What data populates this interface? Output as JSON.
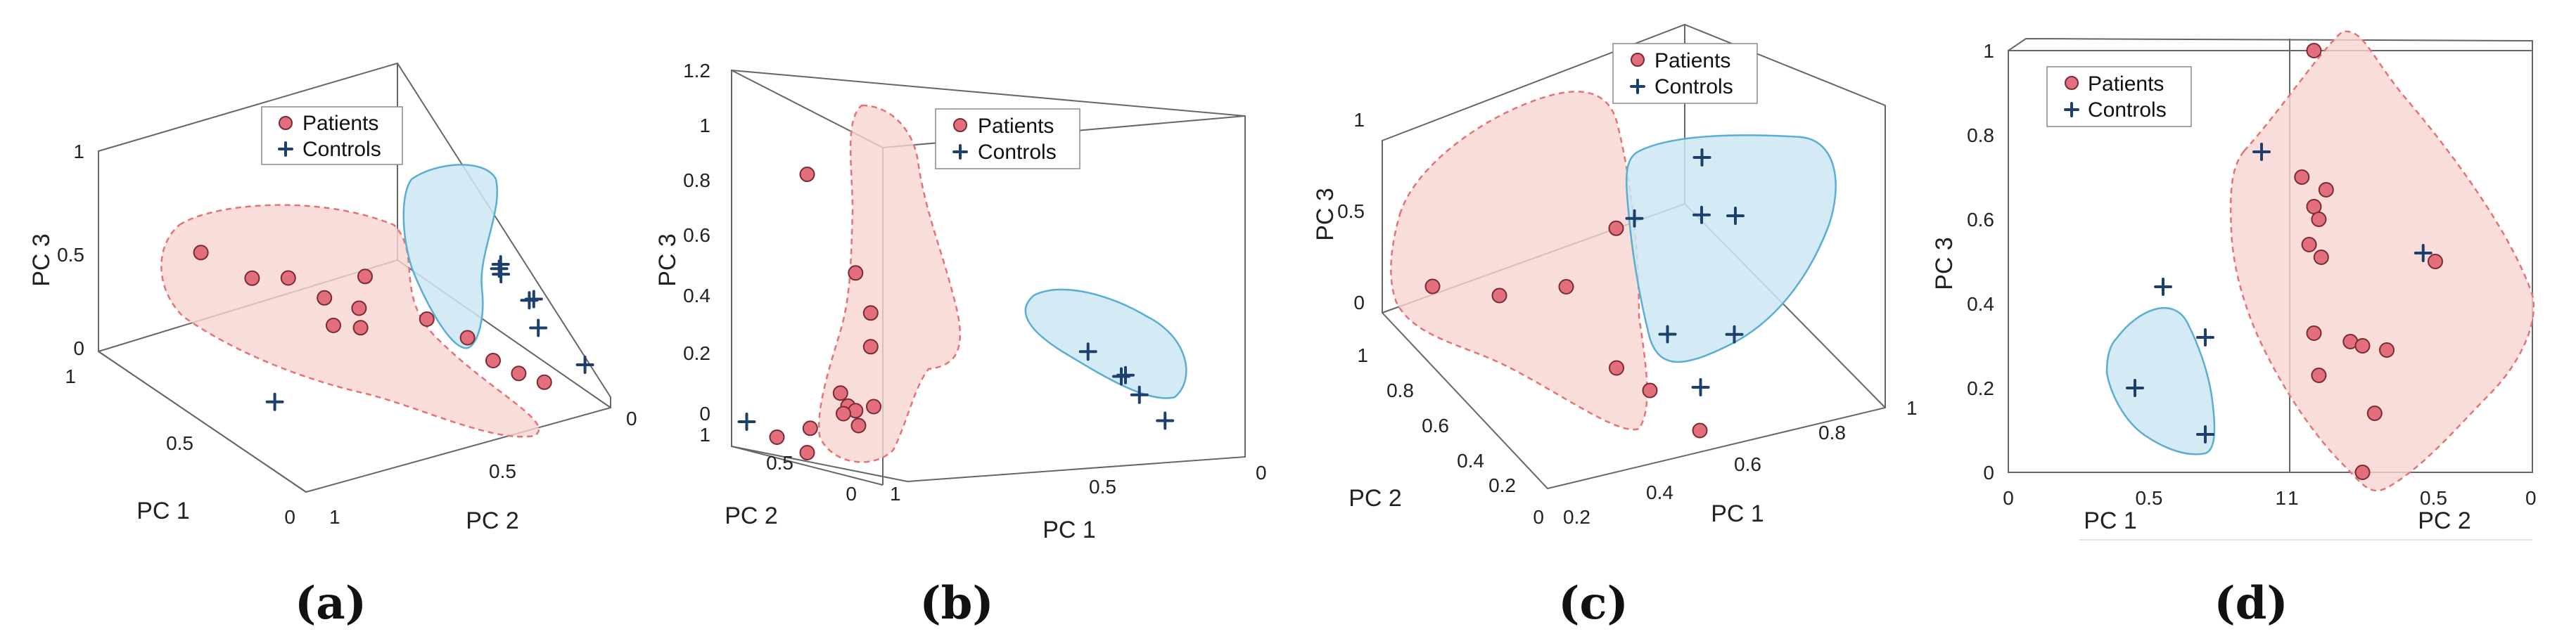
{
  "colors": {
    "patient_fill": "#e36f7d",
    "control_stroke": "#1d3f6e",
    "patient_region": "#f6d4d2",
    "control_region": "#cde8f3"
  },
  "legend": {
    "patients": "Patients",
    "controls": "Controls"
  },
  "chart_data": [
    {
      "type": "scatter",
      "panel_label": "(a)",
      "xlabel": "PC 1",
      "ylabel": "PC 2",
      "zlabel": "PC 3",
      "x_ticks": [
        "1",
        "0.5",
        "0"
      ],
      "y_ticks": [
        "1",
        "0.5",
        "0"
      ],
      "z_ticks": [
        "1",
        "0.5",
        "0"
      ],
      "series": [
        {
          "name": "Patients",
          "points": [
            [
              0.8,
              0.2,
              0.55
            ],
            [
              0.7,
              0.3,
              0.45
            ],
            [
              0.6,
              0.35,
              0.5
            ],
            [
              0.5,
              0.4,
              0.45
            ],
            [
              0.45,
              0.5,
              0.55
            ],
            [
              0.4,
              0.45,
              0.35
            ],
            [
              0.55,
              0.55,
              0.3
            ],
            [
              0.3,
              0.6,
              0.4
            ],
            [
              0.25,
              0.7,
              0.3
            ],
            [
              0.2,
              0.75,
              0.2
            ],
            [
              0.15,
              0.8,
              0.15
            ],
            [
              0.1,
              0.85,
              0.12
            ],
            [
              0.6,
              0.5,
              0.2
            ]
          ]
        },
        {
          "name": "Controls",
          "points": [
            [
              0.1,
              0.7,
              0.75
            ],
            [
              0.12,
              0.72,
              0.7
            ],
            [
              0.15,
              0.74,
              0.72
            ],
            [
              0.1,
              0.8,
              0.55
            ],
            [
              0.15,
              0.85,
              0.5
            ],
            [
              0.2,
              0.9,
              0.3
            ],
            [
              0.05,
              0.95,
              0.2
            ],
            [
              0.45,
              0.2,
              0.05
            ]
          ]
        }
      ]
    },
    {
      "type": "scatter",
      "panel_label": "(b)",
      "xlabel": "PC 1",
      "ylabel": "PC 2",
      "zlabel": "PC 3",
      "x_ticks": [
        "1",
        "0.5",
        "0"
      ],
      "y_ticks": [
        "1",
        "0.5",
        "0"
      ],
      "z_ticks": [
        "0",
        "0.2",
        "0.4",
        "0.6",
        "0.8",
        "1",
        "1.2"
      ],
      "series": [
        {
          "name": "Patients",
          "points": [
            [
              1,
              0.5,
              1.03
            ],
            [
              0.95,
              0.3,
              0.7
            ],
            [
              0.95,
              0.2,
              0.57
            ],
            [
              0.95,
              0.2,
              0.45
            ],
            [
              0.95,
              0.4,
              0.26
            ],
            [
              0.9,
              0.3,
              0.22
            ],
            [
              0.95,
              0.35,
              0.22
            ],
            [
              0.95,
              0.3,
              0.21
            ],
            [
              0.9,
              0.5,
              0.17
            ],
            [
              0.9,
              0.4,
              0.14
            ],
            [
              0.95,
              0.6,
              0.11
            ],
            [
              1,
              0.7,
              0.07
            ],
            [
              1,
              0.5,
              0.04
            ]
          ]
        },
        {
          "name": "Controls",
          "points": [
            [
              0.35,
              0.2,
              0.38
            ],
            [
              0.3,
              0.1,
              0.3
            ],
            [
              0.28,
              0.12,
              0.3
            ],
            [
              0.25,
              0.1,
              0.23
            ],
            [
              0.2,
              0.05,
              0.14
            ],
            [
              1,
              0.9,
              0.1
            ]
          ]
        }
      ]
    },
    {
      "type": "scatter",
      "panel_label": "(c)",
      "xlabel": "PC 1",
      "ylabel": "PC 2",
      "zlabel": "PC 3",
      "x_ticks": [
        "0.2",
        "0.4",
        "0.6",
        "0.8",
        "1"
      ],
      "y_ticks": [
        "0",
        "0.2",
        "0.4",
        "0.6",
        "0.8",
        "1"
      ],
      "z_ticks": [
        "0",
        "0.5",
        "1"
      ],
      "series": [
        {
          "name": "Patients",
          "points": [
            [
              0.35,
              0.3,
              1.0
            ],
            [
              0.3,
              0.5,
              0.5
            ],
            [
              0.2,
              0.7,
              0.3
            ],
            [
              0.1,
              0.9,
              0.2
            ],
            [
              0.4,
              0.4,
              0.1
            ],
            [
              0.45,
              0.3,
              0.05
            ],
            [
              0.5,
              0.1,
              0.0
            ]
          ]
        },
        {
          "name": "Controls",
          "points": [
            [
              0.8,
              0.7,
              0.8
            ],
            [
              0.75,
              0.6,
              0.6
            ],
            [
              0.85,
              0.6,
              0.55
            ],
            [
              0.6,
              0.7,
              0.55
            ],
            [
              0.7,
              0.3,
              0.25
            ],
            [
              0.6,
              0.5,
              0.1
            ],
            [
              0.6,
              0.3,
              0.0
            ]
          ]
        }
      ]
    },
    {
      "type": "scatter",
      "panel_label": "(d)",
      "xlabel": "PC 1",
      "ylabel": "PC 2",
      "zlabel": "PC 3",
      "x_ticks": [
        "0",
        "0.5",
        "1"
      ],
      "y_ticks": [
        "1",
        "0.5",
        "0"
      ],
      "z_ticks": [
        "0",
        "0.2",
        "0.4",
        "0.6",
        "0.8",
        "1"
      ],
      "series": [
        {
          "name": "Patients",
          "points": [
            [
              1,
              0.9,
              1.0
            ],
            [
              1,
              0.95,
              0.7
            ],
            [
              1,
              0.85,
              0.67
            ],
            [
              1,
              0.9,
              0.63
            ],
            [
              1,
              0.88,
              0.6
            ],
            [
              1,
              0.92,
              0.54
            ],
            [
              1,
              0.87,
              0.51
            ],
            [
              1,
              0.4,
              0.5
            ],
            [
              1,
              0.9,
              0.33
            ],
            [
              1,
              0.75,
              0.31
            ],
            [
              1,
              0.7,
              0.3
            ],
            [
              1,
              0.6,
              0.29
            ],
            [
              1,
              0.88,
              0.23
            ],
            [
              1,
              0.65,
              0.14
            ],
            [
              1,
              0.7,
              0.0
            ]
          ]
        },
        {
          "name": "Controls",
          "points": [
            [
              0.9,
              1,
              0.76
            ],
            [
              0.55,
              1,
              0.44
            ],
            [
              0.7,
              1,
              0.32
            ],
            [
              0.45,
              1,
              0.2
            ],
            [
              0.7,
              1,
              0.09
            ],
            [
              1,
              0.45,
              0.52
            ]
          ]
        }
      ]
    }
  ]
}
